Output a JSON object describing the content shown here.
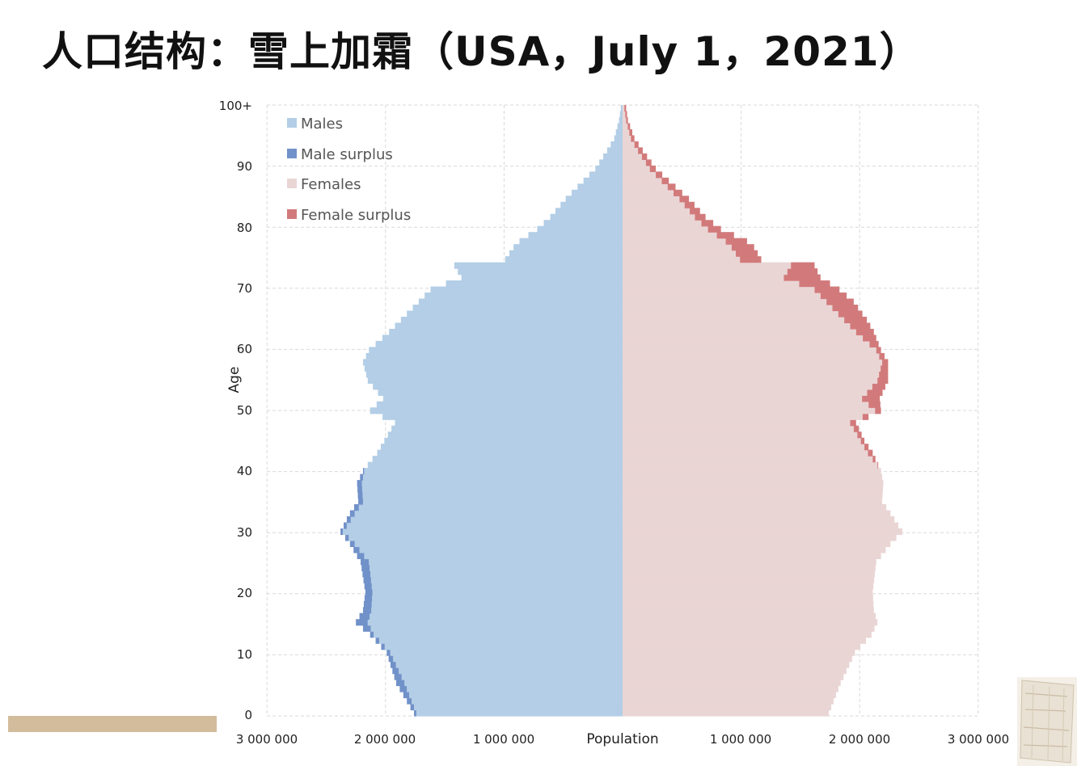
{
  "slide": {
    "title": "人口结构：雪上加霜（USA，July 1，2021）"
  },
  "colors": {
    "males": "#b3cee6",
    "male_surplus": "#7191c9",
    "females": "#ead5d5",
    "female_surplus": "#d27a7b",
    "grid": "#d9d9d9",
    "deco_bar": "#d2bc9c"
  },
  "chart_data": {
    "type": "bar",
    "orientation": "horizontal",
    "subtype": "population-pyramid",
    "title": "",
    "xlabel": "Population",
    "ylabel": "Age",
    "xlim": [
      -3000000,
      3000000
    ],
    "x_ticks": [
      "3 000 000",
      "2 000 000",
      "1 000 000",
      "Population",
      "1 000 000",
      "2 000 000",
      "3 000 000"
    ],
    "y_ticks": [
      "0",
      "10",
      "20",
      "30",
      "40",
      "50",
      "60",
      "70",
      "80",
      "90",
      "100+"
    ],
    "ylim": [
      0,
      100
    ],
    "grid": true,
    "legend_position": "top-left",
    "legend": [
      "Males",
      "Male surplus",
      "Females",
      "Female surplus"
    ],
    "age_points": [
      0,
      5,
      10,
      13,
      15,
      17,
      20,
      25,
      28,
      30,
      33,
      35,
      38,
      40,
      43,
      45,
      48,
      50,
      52,
      55,
      58,
      60,
      63,
      65,
      68,
      70,
      72,
      74,
      75,
      77,
      78,
      80,
      82,
      85,
      88,
      90,
      93,
      95,
      98,
      100
    ],
    "males_points": [
      1760000,
      1910000,
      1990000,
      2130000,
      2250000,
      2190000,
      2170000,
      2210000,
      2300000,
      2380000,
      2300000,
      2230000,
      2240000,
      2190000,
      2070000,
      2010000,
      1920000,
      2130000,
      2020000,
      2150000,
      2190000,
      2140000,
      1970000,
      1870000,
      1720000,
      1620000,
      1360000,
      1420000,
      990000,
      920000,
      870000,
      720000,
      610000,
      480000,
      330000,
      230000,
      130000,
      70000,
      30000,
      15000
    ],
    "females_points": [
      1740000,
      1840000,
      1960000,
      2100000,
      2150000,
      2120000,
      2110000,
      2140000,
      2260000,
      2360000,
      2260000,
      2190000,
      2200000,
      2180000,
      2110000,
      2040000,
      1970000,
      2180000,
      2170000,
      2240000,
      2240000,
      2180000,
      2120000,
      2060000,
      1950000,
      1830000,
      1670000,
      1620000,
      1170000,
      1110000,
      1050000,
      830000,
      700000,
      560000,
      390000,
      280000,
      170000,
      100000,
      45000,
      30000
    ]
  }
}
